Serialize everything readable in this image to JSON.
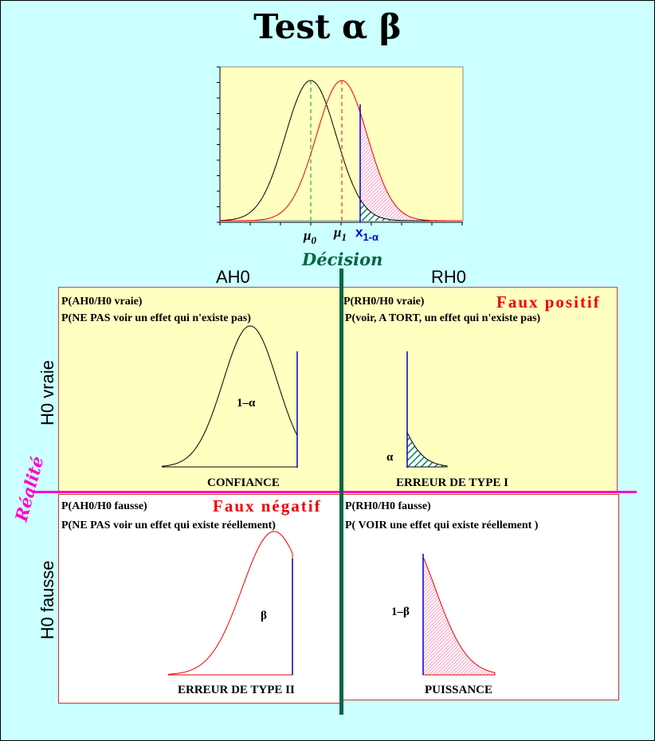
{
  "title": "Test α β",
  "top_chart": {
    "labels": {
      "mu0": "μ",
      "mu0_sub": "0",
      "mu1": "μ",
      "mu1_sub": "1",
      "x": "x",
      "x_sub": "1-α"
    }
  },
  "decision_label": "Décision",
  "realite_label": "Réalité",
  "columns": {
    "left": "AH0",
    "right": "RH0"
  },
  "rows": {
    "top": "H0 vraie",
    "bottom": "H0 fausse"
  },
  "quadrants": {
    "top_left": {
      "line1": "P(AH0/H0 vraie)",
      "line2": "P(NE PAS voir un effet qui n'existe pas)",
      "curve_label": "1–α",
      "caption": "CONFIANCE"
    },
    "top_right": {
      "line1": "P(RH0/H0 vraie)",
      "tag": "Faux positif",
      "line2": "P(voir, A TORT, un effet qui n'existe pas)",
      "curve_label": "α",
      "caption": "ERREUR DE TYPE I"
    },
    "bottom_left": {
      "line1": "P(AH0/H0 fausse)",
      "tag": "Faux négatif",
      "line2": "P(NE PAS voir un effet qui existe réellement)",
      "curve_label": "β",
      "caption": "ERREUR DE TYPE II"
    },
    "bottom_right": {
      "line1": "P(RH0/H0 fausse)",
      "line2": "P( VOIR une effet qui existe réellement )",
      "curve_label": "1–β",
      "caption": "PUISSANCE"
    }
  },
  "colors": {
    "background": "#ccffff",
    "panel_yellow": "#ffffc0",
    "decision_line": "#006644",
    "realite_line": "#ff00cc",
    "h0_curve": "#000000",
    "h1_curve": "#ee0000",
    "hatch_green": "#008866",
    "pink_fill": "#ff99bb",
    "x_line": "#0000cc"
  }
}
